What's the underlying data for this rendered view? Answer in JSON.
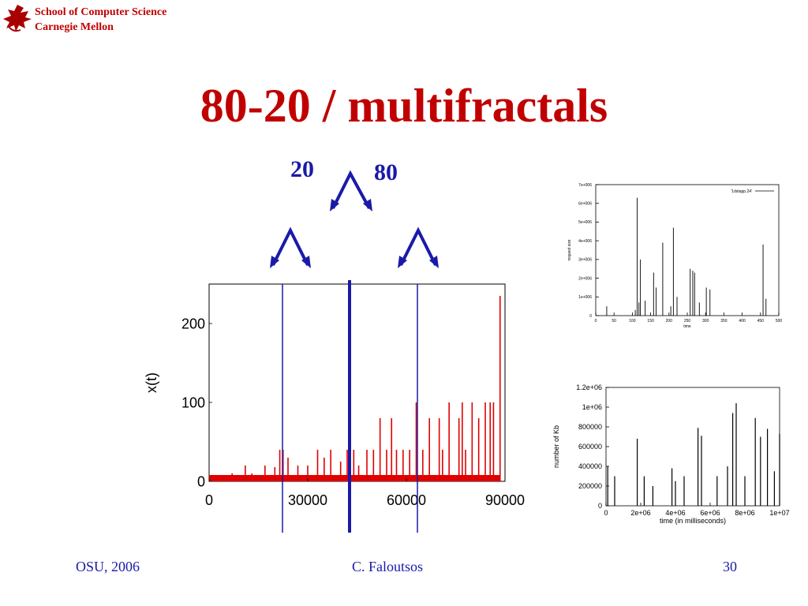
{
  "header": {
    "school_line1": "School of Computer Science",
    "school_line2": "Carnegie Mellon"
  },
  "slide": {
    "title": "80-20 / multifractals",
    "label_20": "20",
    "label_80": "80"
  },
  "footer": {
    "left": "OSU, 2006",
    "center": "C. Faloutsos",
    "right": "30"
  },
  "colors": {
    "title_red": "#c00000",
    "accent_blue": "#1a1aa8",
    "bar_red": "#e00000"
  },
  "chart_data": [
    {
      "type": "bar",
      "ylabel": "x(t)",
      "xlabel": "",
      "x_ticks": [
        "0",
        "30000",
        "60000",
        "90000"
      ],
      "y_ticks": [
        "0",
        "100",
        "200"
      ],
      "xlim": [
        0,
        90000
      ],
      "ylim": [
        0,
        250
      ],
      "spikes": [
        {
          "x": 2500,
          "y": 8
        },
        {
          "x": 7000,
          "y": 10
        },
        {
          "x": 11000,
          "y": 20
        },
        {
          "x": 13000,
          "y": 10
        },
        {
          "x": 17000,
          "y": 20
        },
        {
          "x": 20000,
          "y": 18
        },
        {
          "x": 21500,
          "y": 40
        },
        {
          "x": 22500,
          "y": 40
        },
        {
          "x": 24000,
          "y": 30
        },
        {
          "x": 27000,
          "y": 20
        },
        {
          "x": 30000,
          "y": 20
        },
        {
          "x": 33000,
          "y": 40
        },
        {
          "x": 35000,
          "y": 30
        },
        {
          "x": 37000,
          "y": 40
        },
        {
          "x": 40000,
          "y": 25
        },
        {
          "x": 42000,
          "y": 40
        },
        {
          "x": 44000,
          "y": 40
        },
        {
          "x": 45500,
          "y": 20
        },
        {
          "x": 48000,
          "y": 40
        },
        {
          "x": 50000,
          "y": 40
        },
        {
          "x": 52000,
          "y": 80
        },
        {
          "x": 54000,
          "y": 40
        },
        {
          "x": 55500,
          "y": 80
        },
        {
          "x": 57000,
          "y": 40
        },
        {
          "x": 59000,
          "y": 40
        },
        {
          "x": 61000,
          "y": 40
        },
        {
          "x": 63000,
          "y": 100
        },
        {
          "x": 65000,
          "y": 40
        },
        {
          "x": 67000,
          "y": 80
        },
        {
          "x": 70000,
          "y": 80
        },
        {
          "x": 71000,
          "y": 40
        },
        {
          "x": 73000,
          "y": 100
        },
        {
          "x": 76000,
          "y": 80
        },
        {
          "x": 77000,
          "y": 100
        },
        {
          "x": 78000,
          "y": 40
        },
        {
          "x": 80000,
          "y": 100
        },
        {
          "x": 82000,
          "y": 80
        },
        {
          "x": 84000,
          "y": 100
        },
        {
          "x": 85500,
          "y": 100
        },
        {
          "x": 86500,
          "y": 100
        },
        {
          "x": 88500,
          "y": 235
        }
      ]
    },
    {
      "type": "line",
      "xlabel": "time",
      "ylabel": "request size",
      "legend": "'1dstapp.24'",
      "legend_position": "top-right",
      "x_ticks": [
        "0",
        "50",
        "100",
        "150",
        "200",
        "250",
        "300",
        "350",
        "400",
        "450",
        "500"
      ],
      "y_ticks": [
        "0",
        "1e+006",
        "2e+006",
        "3e+006",
        "4e+006",
        "5e+006",
        "6e+006",
        "7e+006"
      ],
      "xlim": [
        0,
        500
      ],
      "ylim": [
        0,
        7000000
      ],
      "spikes": [
        {
          "x": 30,
          "y": 500000
        },
        {
          "x": 108,
          "y": 300000
        },
        {
          "x": 113,
          "y": 6300000
        },
        {
          "x": 118,
          "y": 700000
        },
        {
          "x": 122,
          "y": 3000000
        },
        {
          "x": 135,
          "y": 800000
        },
        {
          "x": 158,
          "y": 2300000
        },
        {
          "x": 165,
          "y": 1500000
        },
        {
          "x": 183,
          "y": 3900000
        },
        {
          "x": 205,
          "y": 500000
        },
        {
          "x": 212,
          "y": 4700000
        },
        {
          "x": 222,
          "y": 1000000
        },
        {
          "x": 258,
          "y": 2500000
        },
        {
          "x": 265,
          "y": 2400000
        },
        {
          "x": 270,
          "y": 2300000
        },
        {
          "x": 283,
          "y": 700000
        },
        {
          "x": 302,
          "y": 1500000
        },
        {
          "x": 312,
          "y": 1400000
        },
        {
          "x": 457,
          "y": 3800000
        },
        {
          "x": 465,
          "y": 900000
        }
      ]
    },
    {
      "type": "line",
      "xlabel": "time (in milliseconds)",
      "ylabel": "number of Kb",
      "x_ticks": [
        "0",
        "2e+06",
        "4e+06",
        "6e+06",
        "8e+06",
        "1e+07"
      ],
      "y_ticks": [
        "0",
        "200000",
        "400000",
        "600000",
        "800000",
        "1e+06",
        "1.2e+06"
      ],
      "xlim": [
        0,
        10000000
      ],
      "ylim": [
        0,
        1200000
      ],
      "spikes": [
        {
          "x": 100000,
          "y": 400000
        },
        {
          "x": 500000,
          "y": 300000
        },
        {
          "x": 1800000,
          "y": 680000
        },
        {
          "x": 2200000,
          "y": 300000
        },
        {
          "x": 2700000,
          "y": 200000
        },
        {
          "x": 3800000,
          "y": 380000
        },
        {
          "x": 4000000,
          "y": 250000
        },
        {
          "x": 4500000,
          "y": 300000
        },
        {
          "x": 5300000,
          "y": 790000
        },
        {
          "x": 5500000,
          "y": 710000
        },
        {
          "x": 6400000,
          "y": 300000
        },
        {
          "x": 7000000,
          "y": 400000
        },
        {
          "x": 7300000,
          "y": 940000
        },
        {
          "x": 7500000,
          "y": 1040000
        },
        {
          "x": 8000000,
          "y": 300000
        },
        {
          "x": 8600000,
          "y": 890000
        },
        {
          "x": 8900000,
          "y": 700000
        },
        {
          "x": 9300000,
          "y": 780000
        },
        {
          "x": 9700000,
          "y": 350000
        },
        {
          "x": 10000000,
          "y": 730000
        }
      ]
    }
  ]
}
